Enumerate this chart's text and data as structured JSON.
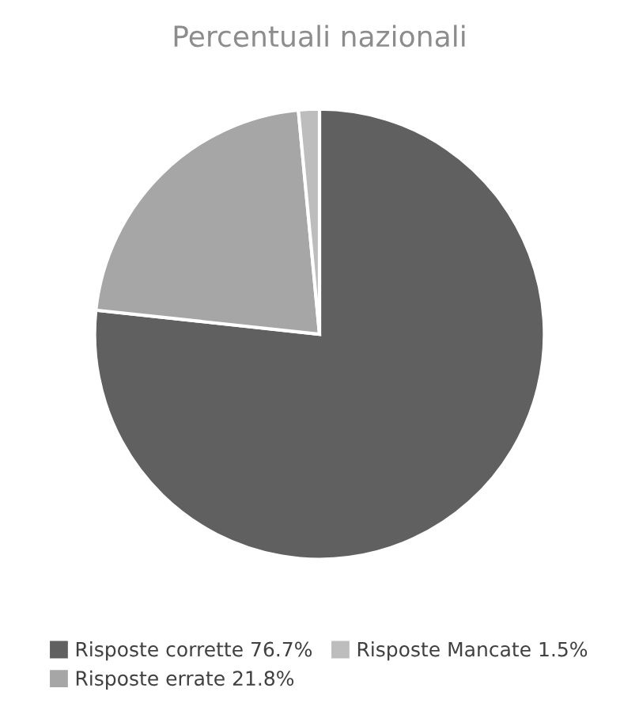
{
  "chart_data": {
    "type": "pie",
    "title": "Percentuali nazionali",
    "categories": [
      "Risposte corrette",
      "Risposte errate",
      "Risposte Mancate"
    ],
    "values": [
      76.7,
      21.8,
      1.5
    ],
    "value_labels": [
      "76.7%",
      "21.8%",
      "1.5%"
    ],
    "colors": [
      "#606060",
      "#a6a6a6",
      "#bdbdbd"
    ],
    "legend": "bottom"
  }
}
